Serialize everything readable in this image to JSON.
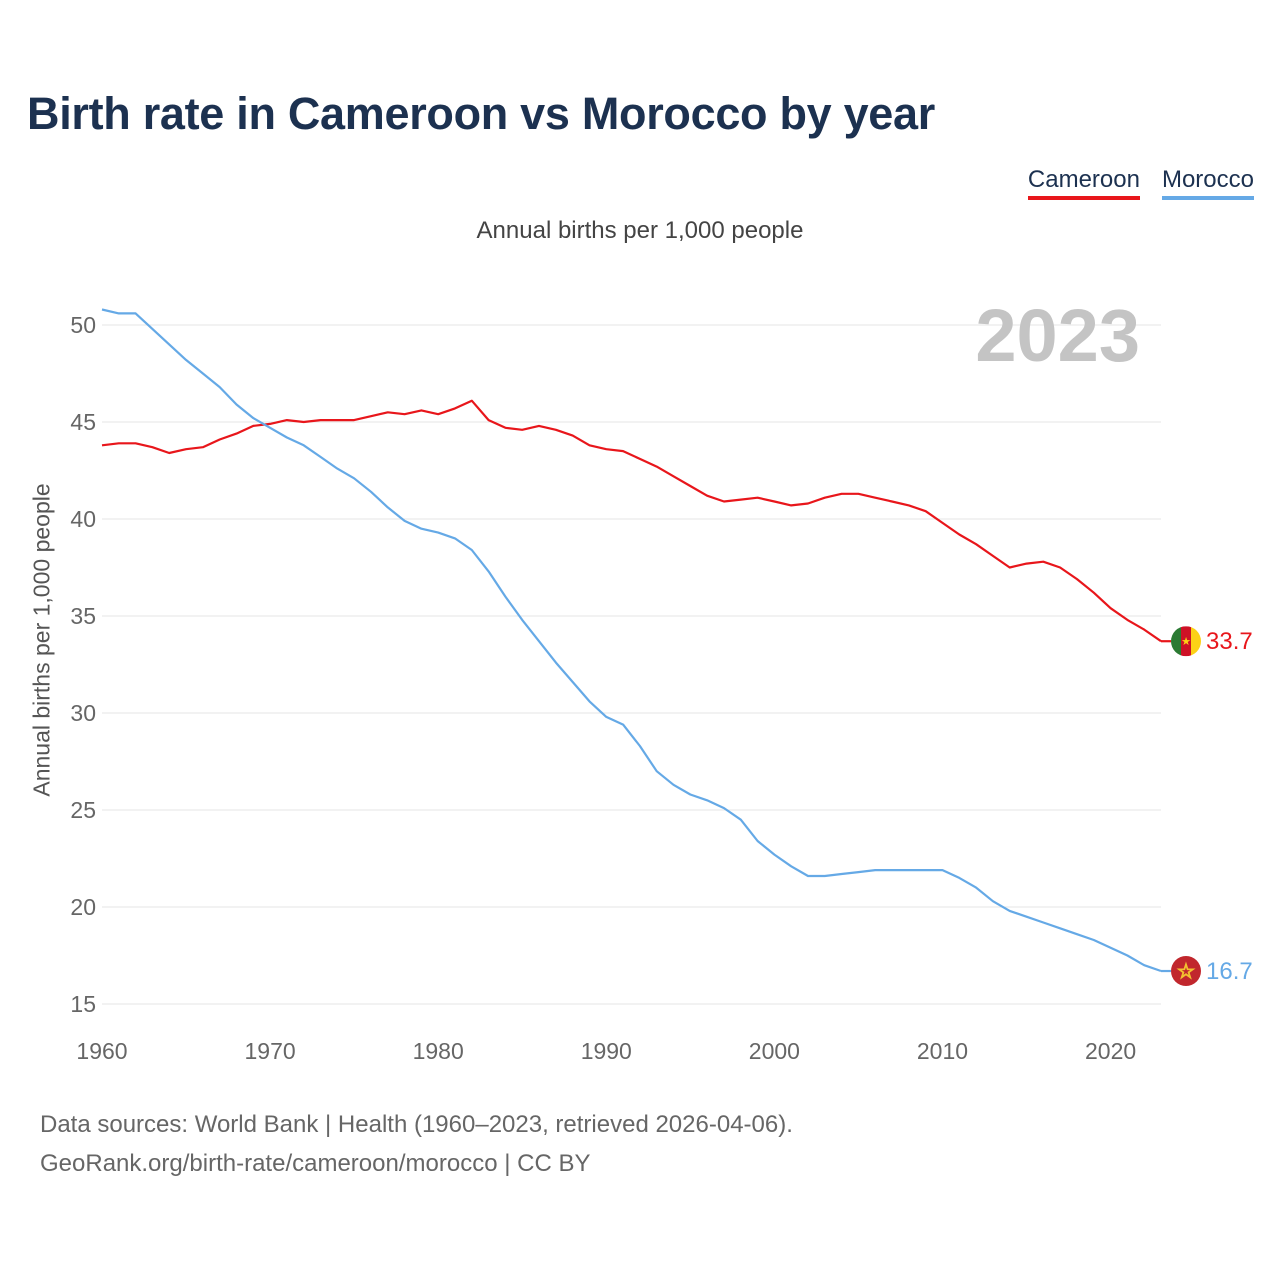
{
  "page": {
    "title": "Birth rate in Cameroon vs Morocco by year",
    "subtitle": "Annual births per 1,000 people",
    "footer_line1": "Data sources: World Bank | Health (1960–2023, retrieved 2026-04-06).",
    "footer_line2": "GeoRank.org/birth-rate/cameroon/morocco | CC BY"
  },
  "legend": {
    "items": [
      {
        "label": "Cameroon",
        "color": "#e8161b"
      },
      {
        "label": "Morocco",
        "color": "#65a9e6"
      }
    ]
  },
  "chart_data": {
    "type": "line",
    "title": "Birth rate in Cameroon vs Morocco by year",
    "subtitle": "Annual births per 1,000 people",
    "xlabel": "",
    "ylabel": "Annual births per 1,000 people",
    "year_label": "2023",
    "xlim": [
      1960,
      2023
    ],
    "ylim": [
      15,
      51
    ],
    "xticks": [
      1960,
      1970,
      1980,
      1990,
      2000,
      2010,
      2020
    ],
    "yticks": [
      15,
      20,
      25,
      30,
      35,
      40,
      45,
      50
    ],
    "grid": true,
    "legend_position": "top-right",
    "x": [
      1960,
      1961,
      1962,
      1963,
      1964,
      1965,
      1966,
      1967,
      1968,
      1969,
      1970,
      1971,
      1972,
      1973,
      1974,
      1975,
      1976,
      1977,
      1978,
      1979,
      1980,
      1981,
      1982,
      1983,
      1984,
      1985,
      1986,
      1987,
      1988,
      1989,
      1990,
      1991,
      1992,
      1993,
      1994,
      1995,
      1996,
      1997,
      1998,
      1999,
      2000,
      2001,
      2002,
      2003,
      2004,
      2005,
      2006,
      2007,
      2008,
      2009,
      2010,
      2011,
      2012,
      2013,
      2014,
      2015,
      2016,
      2017,
      2018,
      2019,
      2020,
      2021,
      2022,
      2023
    ],
    "series": [
      {
        "name": "Cameroon",
        "color": "#e8161b",
        "end_label": "33.7",
        "flag": "cameroon-flag-icon",
        "values": [
          43.8,
          43.9,
          43.9,
          43.7,
          43.4,
          43.6,
          43.7,
          44.1,
          44.4,
          44.8,
          44.9,
          45.1,
          45.0,
          45.1,
          45.1,
          45.1,
          45.3,
          45.5,
          45.4,
          45.6,
          45.4,
          45.7,
          46.1,
          45.1,
          44.7,
          44.6,
          44.8,
          44.6,
          44.3,
          43.8,
          43.6,
          43.5,
          43.1,
          42.7,
          42.2,
          41.7,
          41.2,
          40.9,
          41.0,
          41.1,
          40.9,
          40.7,
          40.8,
          41.1,
          41.3,
          41.3,
          41.1,
          40.9,
          40.7,
          40.4,
          39.8,
          39.2,
          38.7,
          38.1,
          37.5,
          37.7,
          37.8,
          37.5,
          36.9,
          36.2,
          35.4,
          34.8,
          34.3,
          33.7
        ]
      },
      {
        "name": "Morocco",
        "color": "#65a9e6",
        "end_label": "16.7",
        "flag": "morocco-flag-icon",
        "values": [
          50.8,
          50.6,
          50.6,
          49.8,
          49.0,
          48.2,
          47.5,
          46.8,
          45.9,
          45.2,
          44.7,
          44.2,
          43.8,
          43.2,
          42.6,
          42.1,
          41.4,
          40.6,
          39.9,
          39.5,
          39.3,
          39.0,
          38.4,
          37.3,
          36.0,
          34.8,
          33.7,
          32.6,
          31.6,
          30.6,
          29.8,
          29.4,
          28.3,
          27.0,
          26.3,
          25.8,
          25.5,
          25.1,
          24.5,
          23.4,
          22.7,
          22.1,
          21.6,
          21.6,
          21.7,
          21.8,
          21.9,
          21.9,
          21.9,
          21.9,
          21.9,
          21.5,
          21.0,
          20.3,
          19.8,
          19.5,
          19.2,
          18.9,
          18.6,
          18.3,
          17.9,
          17.5,
          17.0,
          16.7
        ]
      }
    ]
  }
}
